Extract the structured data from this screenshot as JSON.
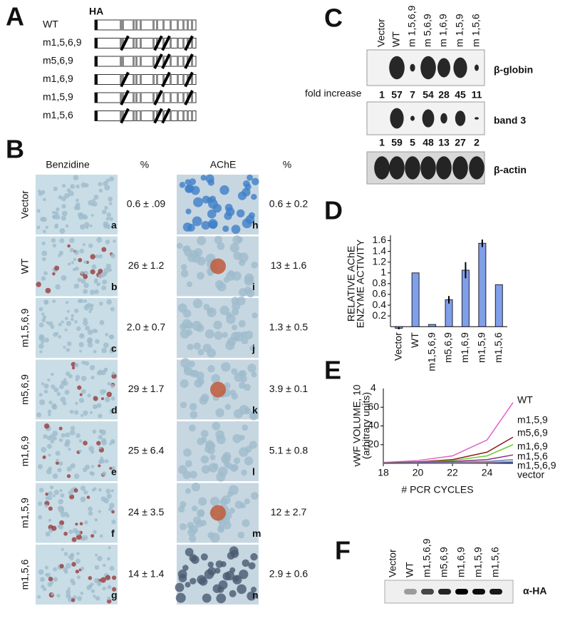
{
  "panel_a": {
    "letter": "A",
    "tag": "HA",
    "constructs": [
      "WT",
      "m1,5,6,9",
      "m5,6,9",
      "m1,6,9",
      "m1,5,9",
      "m1,5,6"
    ]
  },
  "panel_b": {
    "letter": "B",
    "headers": [
      "Benzidine",
      "%",
      "AChE",
      "%"
    ],
    "rows": [
      {
        "label": "Vector",
        "benzidine": {
          "letter": "a",
          "percent": "0.6 ± .09"
        },
        "ache": {
          "letter": "h",
          "percent": "0.6 ± 0.2"
        }
      },
      {
        "label": "WT",
        "benzidine": {
          "letter": "b",
          "percent": "26 ± 1.2"
        },
        "ache": {
          "letter": "i",
          "percent": "13 ± 1.6"
        }
      },
      {
        "label": "m1,5,6,9",
        "benzidine": {
          "letter": "c",
          "percent": "2.0 ± 0.7"
        },
        "ache": {
          "letter": "j",
          "percent": "1.3 ± 0.5"
        }
      },
      {
        "label": "m5,6,9",
        "benzidine": {
          "letter": "d",
          "percent": "29 ± 1.7"
        },
        "ache": {
          "letter": "k",
          "percent": "3.9 ± 0.1"
        }
      },
      {
        "label": "m1,6,9",
        "benzidine": {
          "letter": "e",
          "percent": "25 ± 6.4"
        },
        "ache": {
          "letter": "l",
          "percent": "5.1 ± 0.8"
        }
      },
      {
        "label": "m1,5,9",
        "benzidine": {
          "letter": "f",
          "percent": "24 ± 3.5"
        },
        "ache": {
          "letter": "m",
          "percent": "12 ± 2.7"
        }
      },
      {
        "label": "m1,5,6",
        "benzidine": {
          "letter": "g",
          "percent": "14 ± 1.4"
        },
        "ache": {
          "letter": "n",
          "percent": "2.9 ± 0.6"
        }
      }
    ]
  },
  "panel_c": {
    "letter": "C",
    "lanes": [
      "Vector",
      "WT",
      "m 1,5,6,9",
      "m 5,6,9",
      "m 1,6,9",
      "m 1,5,9",
      "m 1,5,6"
    ],
    "blots": [
      "β-globin",
      "band 3",
      "β-actin"
    ],
    "fold_label": "fold increase",
    "globin_fold": [
      1,
      57,
      7,
      54,
      28,
      45,
      11
    ],
    "band3_fold": [
      1,
      59,
      5,
      48,
      13,
      27,
      2
    ]
  },
  "panel_d": {
    "letter": "D"
  },
  "panel_e": {
    "letter": "E"
  },
  "panel_f": {
    "letter": "F",
    "lanes": [
      "Vector",
      "WT",
      "m1,5,6,9",
      "m5,6,9",
      "m1,6,9",
      "m1,5,9",
      "m1,5,6"
    ],
    "blot": "α-HA"
  },
  "chart_data": [
    {
      "type": "bar",
      "ylabel": [
        "RELATIVE AChE",
        "ENZYME  ACTIVITY"
      ],
      "categories": [
        "Vector",
        "WT",
        "m1,5,6,9",
        "m5,6,9",
        "m1,6,9",
        "m1,5,9",
        "m1,5,6"
      ],
      "values": [
        -0.03,
        1.0,
        0.04,
        0.5,
        1.05,
        1.55,
        0.78
      ],
      "errors": [
        0.02,
        null,
        null,
        0.07,
        0.15,
        0.07,
        null
      ],
      "color": "#7f9fe8",
      "ylim": [
        -0.05,
        1.7
      ],
      "yticks": [
        0.2,
        0.4,
        0.6,
        0.8,
        1,
        1.2,
        1.4,
        1.6
      ]
    },
    {
      "type": "line",
      "ylabel": [
        "vWF VOLUME, 10",
        "(arbitrary units)"
      ],
      "ylabel_exponent": "4",
      "xlabel": "# PCR CYCLES",
      "x": [
        18,
        20,
        22,
        24,
        25.5
      ],
      "xlim": [
        18,
        25.5
      ],
      "xticks": [
        18,
        20,
        22,
        24
      ],
      "ylim": [
        0,
        80
      ],
      "yticks": [
        20,
        40,
        60
      ],
      "series": [
        {
          "name": "WT",
          "color": "#e060c8",
          "values": [
            1,
            3,
            8,
            25,
            65
          ]
        },
        {
          "name": "m1,5,9",
          "color": "#8b1a1a",
          "values": [
            0.5,
            1.5,
            4,
            12,
            28
          ]
        },
        {
          "name": "m5,6,9",
          "color": "#6dcc2f",
          "values": [
            0.3,
            1,
            3,
            8,
            20
          ]
        },
        {
          "name": "m1,6,9",
          "color": "#8a2a8a",
          "values": [
            0.2,
            0.7,
            2,
            4,
            9
          ]
        },
        {
          "name": "m1,5,6",
          "color": "#6a7fb0",
          "values": [
            0.1,
            0.4,
            1,
            2,
            4
          ]
        },
        {
          "name": "m1,5,6,9",
          "color": "#e08a2a",
          "values": [
            0.1,
            0.2,
            0.5,
            1,
            2
          ]
        },
        {
          "name": "vector",
          "color": "#4060c0",
          "values": [
            0,
            0.1,
            0.2,
            0.4,
            1
          ]
        }
      ]
    }
  ]
}
